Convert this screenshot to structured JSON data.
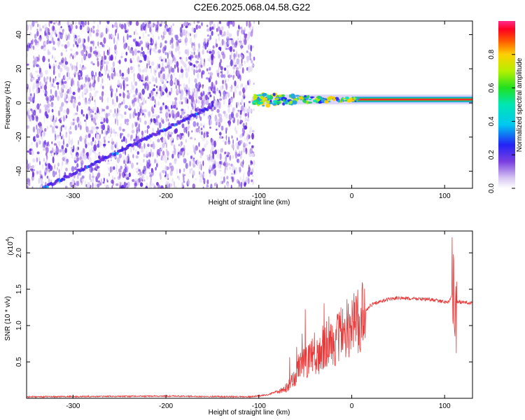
{
  "title": "C2E6.2025.068.04.58.G22",
  "chart_data": [
    {
      "type": "heatmap",
      "xlabel": "Height of straight line (km)",
      "ylabel": "Frequency (Hz)",
      "xlim": [
        -350,
        130
      ],
      "ylim": [
        -50,
        48
      ],
      "xticks": [
        -300,
        -200,
        -100,
        0,
        100
      ],
      "yticks": [
        -40,
        -20,
        0,
        20,
        40
      ],
      "colorbar": {
        "label": "Normalized spectral amplitude",
        "range": [
          0,
          1
        ],
        "ticks": [
          0.0,
          0.2,
          0.4,
          0.6,
          0.8
        ]
      },
      "features": {
        "noise_region_x": [
          -350,
          -105
        ],
        "signal_line": {
          "x": [
            -340,
            -150
          ],
          "y": [
            -52,
            -2
          ]
        },
        "strong_carrier": {
          "x": [
            -105,
            130
          ],
          "y": 2
        }
      }
    },
    {
      "type": "line",
      "xlabel": "Height of straight line (km)",
      "ylabel": "SNR (10 * v/v)",
      "yscale_label": "(x10",
      "yscale_exp": "4",
      "xlim": [
        -350,
        130
      ],
      "ylim": [
        0,
        2.3
      ],
      "xticks": [
        -300,
        -200,
        -100,
        0,
        100
      ],
      "yticks": [
        0.5,
        1.0,
        1.5,
        2.0
      ],
      "color": "#e83a3a",
      "series": [
        {
          "x": [
            -350,
            -200,
            -110,
            -90,
            -80,
            -70,
            -60,
            -55,
            -50,
            -45,
            -40,
            -35,
            -30,
            -25,
            -20,
            -15,
            -10,
            -5,
            0,
            5,
            10,
            15,
            20,
            30,
            40,
            50,
            60,
            70,
            80,
            90,
            100,
            105,
            108,
            110,
            112,
            115,
            120,
            130
          ],
          "values": [
            0.02,
            0.03,
            0.02,
            0.05,
            0.1,
            0.15,
            0.3,
            0.45,
            0.5,
            0.55,
            0.6,
            0.55,
            0.75,
            0.8,
            0.7,
            0.85,
            0.9,
            0.95,
            1.0,
            1.05,
            1.1,
            1.2,
            1.28,
            1.33,
            1.36,
            1.38,
            1.37,
            1.37,
            1.36,
            1.35,
            1.32,
            1.33,
            1.45,
            1.4,
            1.3,
            1.33,
            1.32,
            1.31
          ]
        }
      ]
    }
  ]
}
